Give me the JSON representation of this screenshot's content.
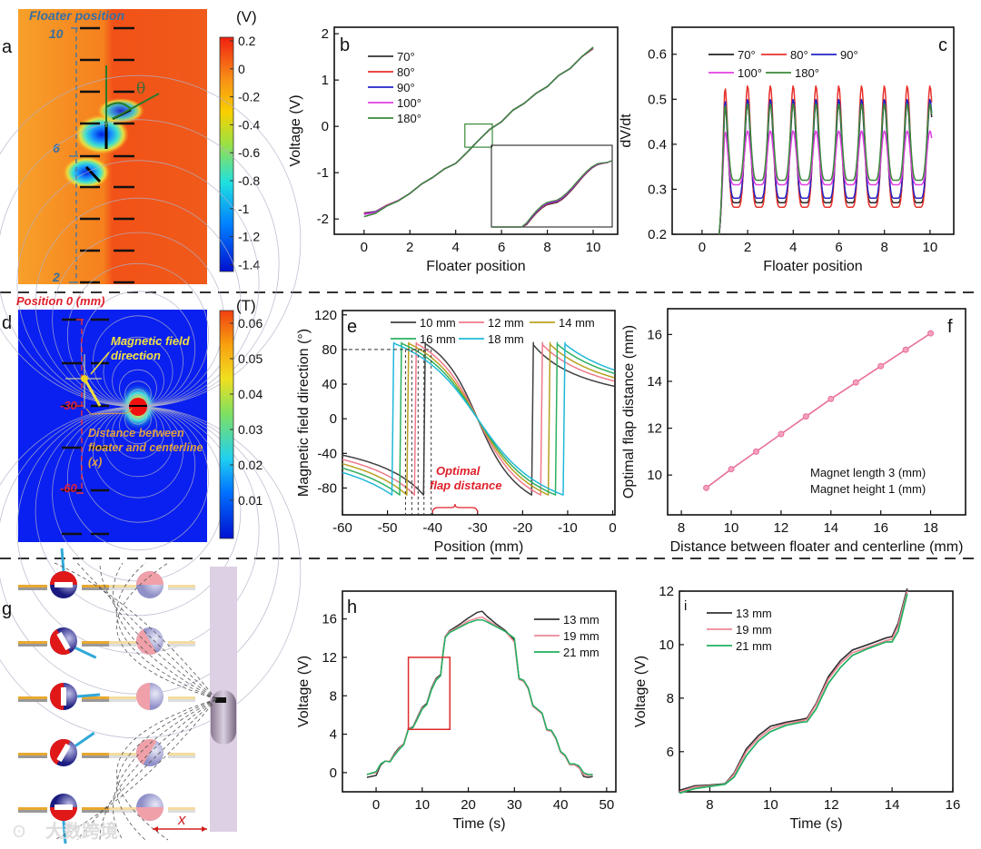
{
  "panel_labels": {
    "a": "a",
    "b": "b",
    "c": "c",
    "d": "d",
    "e": "e",
    "f": "f",
    "g": "g",
    "h": "h",
    "i": "i"
  },
  "panel_a": {
    "title": "Floater position",
    "unit": "(V)",
    "colorbar_ticks": [
      "0.2",
      "0",
      "-0.2",
      "-0.4",
      "-0.6",
      "-0.8",
      "-1",
      "-1.2",
      "-1.4"
    ],
    "position_labels": [
      "10",
      "6",
      "2"
    ],
    "angle_symbol": "θ"
  },
  "panel_d": {
    "title": "Position 0 (mm)",
    "unit": "(T)",
    "colorbar_ticks": [
      "0.06",
      "0.05",
      "0.04",
      "0.03",
      "0.02",
      "0.01"
    ],
    "position_labels": [
      "-30",
      "-60"
    ],
    "field_annotation": [
      "Magnetic field",
      "direction"
    ],
    "distance_annotation": [
      "Distance between",
      "floater and centerline",
      "(x)"
    ]
  },
  "panel_g": {
    "distance_label": "x"
  },
  "watermark": "大数跨境",
  "chart_data": [
    {
      "id": "b",
      "type": "line",
      "xlabel": "Floater position",
      "ylabel": "Voltage (V)",
      "xlim": [
        -1.3,
        11.07
      ],
      "ylim": [
        -2.33,
        2.14
      ],
      "xticks": [
        0,
        2,
        4,
        6,
        8,
        10
      ],
      "yticks": [
        -2,
        -1,
        0,
        1,
        2
      ],
      "x": [
        0,
        0.5,
        1,
        1.5,
        2,
        2.5,
        3,
        3.5,
        4,
        4.5,
        5,
        5.5,
        6,
        6.5,
        7,
        7.5,
        8,
        8.5,
        9,
        9.5,
        10
      ],
      "series": [
        {
          "name": "70°",
          "color": "#333333",
          "y": [
            -1.87,
            -1.84,
            -1.7,
            -1.6,
            -1.45,
            -1.25,
            -1.1,
            -0.92,
            -0.8,
            -0.56,
            -0.3,
            -0.06,
            0.1,
            0.35,
            0.5,
            0.71,
            0.86,
            1.1,
            1.25,
            1.5,
            1.68
          ]
        },
        {
          "name": "80°",
          "color": "#e8312b",
          "y": [
            -1.88,
            -1.85,
            -1.7,
            -1.6,
            -1.45,
            -1.25,
            -1.1,
            -0.92,
            -0.8,
            -0.56,
            -0.3,
            -0.06,
            0.1,
            0.35,
            0.5,
            0.71,
            0.86,
            1.1,
            1.25,
            1.5,
            1.69
          ]
        },
        {
          "name": "90°",
          "color": "#2323c8",
          "y": [
            -1.89,
            -1.85,
            -1.71,
            -1.6,
            -1.45,
            -1.25,
            -1.1,
            -0.92,
            -0.8,
            -0.56,
            -0.3,
            -0.06,
            0.1,
            0.35,
            0.5,
            0.71,
            0.86,
            1.1,
            1.25,
            1.5,
            1.7
          ]
        },
        {
          "name": "100°",
          "color": "#e040e0",
          "y": [
            -1.9,
            -1.86,
            -1.71,
            -1.6,
            -1.45,
            -1.25,
            -1.1,
            -0.92,
            -0.8,
            -0.56,
            -0.3,
            -0.06,
            0.1,
            0.35,
            0.5,
            0.71,
            0.86,
            1.1,
            1.25,
            1.5,
            1.7
          ]
        },
        {
          "name": "180°",
          "color": "#3a8a3a",
          "y": [
            -1.95,
            -1.88,
            -1.72,
            -1.61,
            -1.45,
            -1.25,
            -1.1,
            -0.92,
            -0.8,
            -0.56,
            -0.3,
            -0.06,
            0.1,
            0.35,
            0.5,
            0.71,
            0.86,
            1.1,
            1.25,
            1.5,
            1.71
          ]
        }
      ],
      "inset_region": {
        "xlim": [
          4.4,
          5.6
        ],
        "ylim": [
          -0.45,
          0.05
        ]
      }
    },
    {
      "id": "c",
      "type": "line",
      "xlabel": "Floater position",
      "ylabel": "dV/dt",
      "xlim": [
        -1.31,
        11.04
      ],
      "ylim": [
        0.2,
        0.66
      ],
      "xticks": [
        0,
        2,
        4,
        6,
        8,
        10
      ],
      "yticks": [
        0.2,
        0.3,
        0.4,
        0.5,
        0.6
      ],
      "peak_positions": [
        1,
        2,
        3,
        4,
        5,
        6,
        7,
        8,
        9
      ],
      "series": [
        {
          "name": "70°",
          "color": "#222222",
          "peak": 0.49,
          "trough": 0.27
        },
        {
          "name": "80°",
          "color": "#e8312b",
          "peak": 0.53,
          "trough": 0.26
        },
        {
          "name": "90°",
          "color": "#2323c8",
          "peak": 0.5,
          "trough": 0.28
        },
        {
          "name": "100°",
          "color": "#e040e0",
          "peak": 0.43,
          "trough": 0.31
        },
        {
          "name": "180°",
          "color": "#3a8a3a",
          "peak": 0.49,
          "trough": 0.32
        }
      ]
    },
    {
      "id": "e",
      "type": "line",
      "xlabel": "Position (mm)",
      "ylabel": "Magnetic field direction  (°)",
      "xlim": [
        -60,
        0.5
      ],
      "ylim": [
        -111,
        125
      ],
      "xticks": [
        -60,
        -50,
        -40,
        -30,
        -20,
        -10,
        0
      ],
      "yticks": [
        -80,
        -40,
        0,
        40,
        80,
        120
      ],
      "series": [
        {
          "name": "10 mm",
          "color": "#404040",
          "jump_left": -42,
          "jump_right": -18,
          "left_edge": -42,
          "right_edge": 38
        },
        {
          "name": "12 mm",
          "color": "#f07a8c",
          "jump_left": -44,
          "jump_right": -16,
          "left_edge": -47,
          "right_edge": 44
        },
        {
          "name": "14 mm",
          "color": "#b8a020",
          "jump_left": -45.7,
          "jump_right": -14.3,
          "left_edge": -52,
          "right_edge": 48
        },
        {
          "name": "16 mm",
          "color": "#2cb060",
          "jump_left": -47.3,
          "jump_right": -12.7,
          "left_edge": -57,
          "right_edge": 53
        },
        {
          "name": "18 mm",
          "color": "#20b8d8",
          "jump_left": -49,
          "jump_right": -11,
          "left_edge": -62,
          "right_edge": 57
        }
      ],
      "reference_angle": 80,
      "flap_positions": [
        -46,
        -44.6,
        -43.2,
        -41.9,
        -40.3
      ],
      "annotation": [
        "Optimal",
        "flap distance"
      ],
      "brace_range": [
        -40,
        -30
      ]
    },
    {
      "id": "f",
      "type": "line",
      "xlabel": "Distance between floater and centerline (mm)",
      "ylabel": "Optimal flap distance  (mm)",
      "xlim": [
        7.45,
        19.4
      ],
      "ylim": [
        8.3,
        17.1
      ],
      "xticks": [
        8,
        10,
        12,
        14,
        16,
        18
      ],
      "yticks": [
        10,
        12,
        14,
        16
      ],
      "x": [
        9,
        10,
        11,
        12,
        13,
        14,
        15,
        16,
        17,
        18
      ],
      "y": [
        9.45,
        10.25,
        11.0,
        11.75,
        12.5,
        13.25,
        13.95,
        14.65,
        15.35,
        16.05
      ],
      "color": "#e8709a",
      "notes": [
        "Magnet length 3 (mm)",
        "Magnet height 1 (mm)"
      ]
    },
    {
      "id": "h",
      "type": "line",
      "xlabel": "Time (s)",
      "ylabel": "Voltage (V)",
      "xlim": [
        -7.3,
        52
      ],
      "ylim": [
        -2,
        18.9
      ],
      "xticks": [
        0,
        10,
        20,
        30,
        40,
        50
      ],
      "yticks": [
        0,
        4,
        8,
        12,
        16
      ],
      "x": [
        -2,
        0,
        1,
        2,
        3,
        4,
        5,
        6,
        7,
        8,
        9,
        10,
        11,
        12,
        13,
        14,
        14.5,
        15,
        16,
        18,
        20,
        22,
        23,
        24,
        26,
        28,
        30,
        31,
        32,
        33,
        34,
        35,
        36,
        37,
        38,
        39,
        40,
        41,
        42,
        43,
        44,
        45,
        46,
        47
      ],
      "series": [
        {
          "name": "13 mm",
          "color": "#333333",
          "y": [
            -0.5,
            -0.3,
            0.8,
            1.2,
            1.2,
            2,
            2.6,
            3,
            4.6,
            4.75,
            5.8,
            6.8,
            7.2,
            8.8,
            9.8,
            10.2,
            12.5,
            14.2,
            14.8,
            15.4,
            16.1,
            16.7,
            16.8,
            16.3,
            15.5,
            14.8,
            13.8,
            9.8,
            9.6,
            8.8,
            7,
            6.6,
            6.2,
            4.5,
            4.4,
            3.6,
            2.2,
            1.8,
            0.9,
            0.9,
            0.6,
            -0.4,
            -0.5,
            -0.4
          ]
        },
        {
          "name": "19 mm",
          "color": "#f08898",
          "y": [
            -0.2,
            0,
            0.9,
            1.2,
            1.2,
            1.9,
            2.5,
            3,
            4.6,
            4.7,
            5.7,
            6.7,
            7.1,
            8.7,
            9.7,
            10.1,
            12.4,
            14.2,
            14.7,
            15.2,
            15.8,
            16.1,
            16.2,
            15.9,
            15.3,
            14.7,
            13.6,
            9.7,
            9.5,
            8.7,
            6.9,
            6.5,
            6.1,
            4.4,
            4.3,
            3.5,
            2.1,
            1.7,
            0.8,
            0.8,
            0.5,
            -0.2,
            -0.3,
            -0.2
          ]
        },
        {
          "name": "21 mm",
          "color": "#20b060",
          "y": [
            -0.2,
            0.1,
            0.9,
            1.2,
            1.1,
            1.8,
            2.4,
            2.9,
            4.5,
            4.7,
            5.6,
            6.6,
            7.1,
            8.6,
            9.6,
            10.1,
            12.3,
            14.1,
            14.6,
            15.1,
            15.6,
            15.9,
            15.9,
            15.7,
            15.2,
            14.7,
            14.0,
            9.8,
            9.6,
            8.8,
            7,
            6.6,
            6.2,
            4.5,
            4.4,
            3.6,
            2.2,
            1.8,
            0.9,
            0.9,
            0.7,
            0,
            -0.2,
            -0.2
          ]
        }
      ],
      "zoom_region": {
        "xlim": [
          7,
          16
        ],
        "ylim": [
          4.5,
          12
        ]
      }
    },
    {
      "id": "i",
      "type": "line",
      "xlabel": "Time (s)",
      "ylabel": "Voltage (V)",
      "xlim": [
        7,
        16
      ],
      "ylim": [
        4.5,
        12
      ],
      "xticks": [
        8,
        10,
        12,
        14,
        16
      ],
      "yticks": [
        6,
        8,
        10,
        12
      ],
      "x": [
        7,
        7.5,
        8,
        8.5,
        8.8,
        9.2,
        9.6,
        10,
        10.5,
        11,
        11.2,
        11.5,
        11.9,
        12.3,
        12.7,
        13.2,
        13.8,
        14,
        14.2,
        14.5
      ],
      "series": [
        {
          "name": "13 mm",
          "color": "#333333",
          "y": [
            4.55,
            4.72,
            4.75,
            4.8,
            5.2,
            6.1,
            6.6,
            6.95,
            7.1,
            7.2,
            7.25,
            7.8,
            8.8,
            9.4,
            9.8,
            10.0,
            10.25,
            10.3,
            10.8,
            12.1
          ]
        },
        {
          "name": "19 mm",
          "color": "#f08898",
          "y": [
            4.5,
            4.68,
            4.72,
            4.78,
            5.15,
            6.0,
            6.5,
            6.85,
            7.05,
            7.15,
            7.2,
            7.75,
            8.7,
            9.3,
            9.7,
            9.9,
            10.15,
            10.2,
            10.7,
            12.0
          ]
        },
        {
          "name": "21 mm",
          "color": "#20b060",
          "y": [
            4.45,
            4.62,
            4.7,
            4.78,
            5.05,
            5.85,
            6.4,
            6.75,
            6.98,
            7.1,
            7.12,
            7.6,
            8.55,
            9.15,
            9.6,
            9.85,
            10.1,
            10.1,
            10.5,
            11.9
          ]
        }
      ]
    }
  ]
}
